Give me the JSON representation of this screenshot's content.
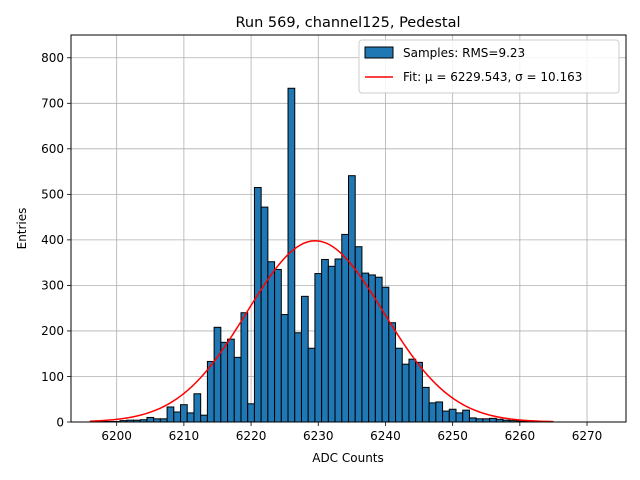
{
  "chart_data": {
    "type": "bar",
    "title": "Run 569, channel125, Pedestal",
    "xlabel": "ADC Counts",
    "ylabel": "Entries",
    "xlim": [
      6193.2,
      6275.8
    ],
    "ylim": [
      0,
      850
    ],
    "xticks": [
      6200,
      6210,
      6220,
      6230,
      6240,
      6250,
      6260,
      6270
    ],
    "yticks": [
      0,
      100,
      200,
      300,
      400,
      500,
      600,
      700,
      800
    ],
    "grid": true,
    "bin_width": 1,
    "legend": {
      "position": "top-right",
      "entries": [
        {
          "kind": "bar",
          "label": "Samples: RMS=9.23",
          "color": "#1f77b4"
        },
        {
          "kind": "line",
          "label": "Fit: μ = 6229.543, σ = 10.163",
          "color": "#ff0000"
        }
      ]
    },
    "series": [
      {
        "name": "Samples",
        "bins": [
          {
            "x": 6197,
            "y": 1
          },
          {
            "x": 6198,
            "y": 2
          },
          {
            "x": 6199,
            "y": 1
          },
          {
            "x": 6200,
            "y": 1
          },
          {
            "x": 6201,
            "y": 3
          },
          {
            "x": 6202,
            "y": 4
          },
          {
            "x": 6203,
            "y": 4
          },
          {
            "x": 6204,
            "y": 5
          },
          {
            "x": 6205,
            "y": 10
          },
          {
            "x": 6206,
            "y": 7
          },
          {
            "x": 6207,
            "y": 7
          },
          {
            "x": 6208,
            "y": 33
          },
          {
            "x": 6209,
            "y": 22
          },
          {
            "x": 6210,
            "y": 38
          },
          {
            "x": 6211,
            "y": 20
          },
          {
            "x": 6212,
            "y": 62
          },
          {
            "x": 6213,
            "y": 15
          },
          {
            "x": 6214,
            "y": 133
          },
          {
            "x": 6215,
            "y": 208
          },
          {
            "x": 6216,
            "y": 175
          },
          {
            "x": 6217,
            "y": 182
          },
          {
            "x": 6218,
            "y": 142
          },
          {
            "x": 6219,
            "y": 240
          },
          {
            "x": 6220,
            "y": 40
          },
          {
            "x": 6221,
            "y": 515
          },
          {
            "x": 6222,
            "y": 472
          },
          {
            "x": 6223,
            "y": 352
          },
          {
            "x": 6224,
            "y": 335
          },
          {
            "x": 6225,
            "y": 236
          },
          {
            "x": 6226,
            "y": 733
          },
          {
            "x": 6227,
            "y": 196
          },
          {
            "x": 6228,
            "y": 276
          },
          {
            "x": 6229,
            "y": 162
          },
          {
            "x": 6230,
            "y": 326
          },
          {
            "x": 6231,
            "y": 357
          },
          {
            "x": 6232,
            "y": 342
          },
          {
            "x": 6233,
            "y": 358
          },
          {
            "x": 6234,
            "y": 412
          },
          {
            "x": 6235,
            "y": 541
          },
          {
            "x": 6236,
            "y": 385
          },
          {
            "x": 6237,
            "y": 327
          },
          {
            "x": 6238,
            "y": 323
          },
          {
            "x": 6239,
            "y": 318
          },
          {
            "x": 6240,
            "y": 296
          },
          {
            "x": 6241,
            "y": 218
          },
          {
            "x": 6242,
            "y": 162
          },
          {
            "x": 6243,
            "y": 127
          },
          {
            "x": 6244,
            "y": 138
          },
          {
            "x": 6245,
            "y": 131
          },
          {
            "x": 6246,
            "y": 76
          },
          {
            "x": 6247,
            "y": 42
          },
          {
            "x": 6248,
            "y": 44
          },
          {
            "x": 6249,
            "y": 24
          },
          {
            "x": 6250,
            "y": 28
          },
          {
            "x": 6251,
            "y": 20
          },
          {
            "x": 6252,
            "y": 26
          },
          {
            "x": 6253,
            "y": 9
          },
          {
            "x": 6254,
            "y": 7
          },
          {
            "x": 6255,
            "y": 7
          },
          {
            "x": 6256,
            "y": 8
          },
          {
            "x": 6257,
            "y": 6
          },
          {
            "x": 6258,
            "y": 4
          },
          {
            "x": 6259,
            "y": 3
          },
          {
            "x": 6260,
            "y": 2
          },
          {
            "x": 6261,
            "y": 2
          },
          {
            "x": 6262,
            "y": 1
          },
          {
            "x": 6263,
            "y": 1
          },
          {
            "x": 6264,
            "y": 1
          }
        ]
      },
      {
        "name": "Fit",
        "type": "line",
        "function": "gaussian",
        "mu": 6229.543,
        "sigma": 10.163,
        "amplitude": 398,
        "x_range": [
          6196,
          6265
        ]
      }
    ]
  },
  "colors": {
    "bar_fill": "#1f77b4",
    "bar_edge": "#000000",
    "fit_line": "#ff0000",
    "grid": "#b0b0b0"
  }
}
